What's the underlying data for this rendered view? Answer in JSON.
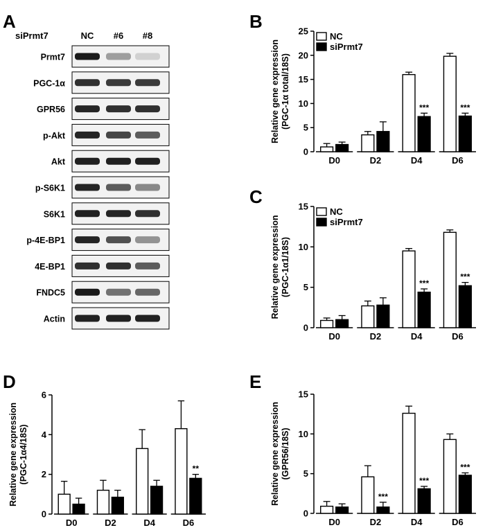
{
  "western_blot": {
    "panel_label": "A",
    "condition_label": "siPrmt7",
    "lanes": [
      "NC",
      "#6",
      "#8"
    ],
    "bands": [
      {
        "label": "Prmt7",
        "intensity": [
          0.95,
          0.35,
          0.12
        ]
      },
      {
        "label": "PGC-1α",
        "intensity": [
          0.85,
          0.8,
          0.8
        ]
      },
      {
        "label": "GPR56",
        "intensity": [
          0.9,
          0.85,
          0.85
        ]
      },
      {
        "label": "p-Akt",
        "intensity": [
          0.9,
          0.75,
          0.65
        ]
      },
      {
        "label": "Akt",
        "intensity": [
          0.92,
          0.92,
          0.92
        ]
      },
      {
        "label": "p-S6K1",
        "intensity": [
          0.9,
          0.65,
          0.45
        ]
      },
      {
        "label": "S6K1",
        "intensity": [
          0.92,
          0.9,
          0.85
        ]
      },
      {
        "label": "p-4E-BP1",
        "intensity": [
          0.9,
          0.7,
          0.4
        ]
      },
      {
        "label": "4E-BP1",
        "intensity": [
          0.85,
          0.85,
          0.65
        ]
      },
      {
        "label": "FNDC5",
        "intensity": [
          0.95,
          0.55,
          0.6
        ]
      },
      {
        "label": "Actin",
        "intensity": [
          0.92,
          0.92,
          0.92
        ]
      }
    ]
  },
  "chart_data": [
    {
      "panel": "B",
      "type": "bar",
      "ylabel": "Relative gene expression",
      "ylabel2": "(PGC-1α total/18S)",
      "ylim": [
        0,
        25
      ],
      "yticks": [
        0,
        5,
        10,
        15,
        20,
        25
      ],
      "categories": [
        "D0",
        "D2",
        "D4",
        "D6"
      ],
      "legend": true,
      "series": [
        {
          "name": "NC",
          "fill": "#ffffff",
          "values": [
            1.0,
            3.5,
            16.0,
            19.8
          ],
          "errors": [
            0.7,
            0.7,
            0.5,
            0.6
          ]
        },
        {
          "name": "siPrmt7",
          "fill": "#000000",
          "values": [
            1.5,
            4.2,
            7.3,
            7.4
          ],
          "errors": [
            0.5,
            2.0,
            0.7,
            0.6
          ]
        }
      ],
      "annotations": [
        "",
        "",
        "***",
        "***"
      ]
    },
    {
      "panel": "C",
      "type": "bar",
      "ylabel": "Relative gene expression",
      "ylabel2": "(PGC-1α1/18S)",
      "ylim": [
        0,
        15
      ],
      "yticks": [
        0,
        5,
        10,
        15
      ],
      "categories": [
        "D0",
        "D2",
        "D4",
        "D6"
      ],
      "legend": true,
      "series": [
        {
          "name": "NC",
          "fill": "#ffffff",
          "values": [
            0.9,
            2.7,
            9.5,
            11.8
          ],
          "errors": [
            0.3,
            0.6,
            0.3,
            0.3
          ]
        },
        {
          "name": "siPrmt7",
          "fill": "#000000",
          "values": [
            1.0,
            2.8,
            4.4,
            5.2
          ],
          "errors": [
            0.5,
            0.9,
            0.4,
            0.4
          ]
        }
      ],
      "annotations": [
        "",
        "",
        "***",
        "***"
      ]
    },
    {
      "panel": "D",
      "type": "bar",
      "ylabel": "Relative gene expression",
      "ylabel2": "(PGC-1α4/18S)",
      "ylim": [
        0,
        6
      ],
      "yticks": [
        0,
        2,
        4,
        6
      ],
      "categories": [
        "D0",
        "D2",
        "D4",
        "D6"
      ],
      "legend": false,
      "series": [
        {
          "name": "NC",
          "fill": "#ffffff",
          "values": [
            1.0,
            1.2,
            3.3,
            4.3
          ],
          "errors": [
            0.65,
            0.5,
            0.95,
            1.4
          ]
        },
        {
          "name": "siPrmt7",
          "fill": "#000000",
          "values": [
            0.5,
            0.85,
            1.4,
            1.8
          ],
          "errors": [
            0.3,
            0.35,
            0.3,
            0.2
          ]
        }
      ],
      "annotations": [
        "",
        "",
        "",
        "**"
      ]
    },
    {
      "panel": "E",
      "type": "bar",
      "ylabel": "Relative gene expression",
      "ylabel2": "(GPR56/18S)",
      "ylim": [
        0,
        15
      ],
      "yticks": [
        0,
        5,
        10,
        15
      ],
      "categories": [
        "D0",
        "D2",
        "D4",
        "D6"
      ],
      "legend": false,
      "series": [
        {
          "name": "NC",
          "fill": "#ffffff",
          "values": [
            0.9,
            4.6,
            12.6,
            9.3
          ],
          "errors": [
            0.6,
            1.4,
            0.9,
            0.7
          ]
        },
        {
          "name": "siPrmt7",
          "fill": "#000000",
          "values": [
            0.8,
            0.8,
            3.1,
            4.8
          ],
          "errors": [
            0.4,
            0.6,
            0.3,
            0.3
          ]
        }
      ],
      "annotations": [
        "",
        "***",
        "***",
        "***"
      ]
    }
  ]
}
